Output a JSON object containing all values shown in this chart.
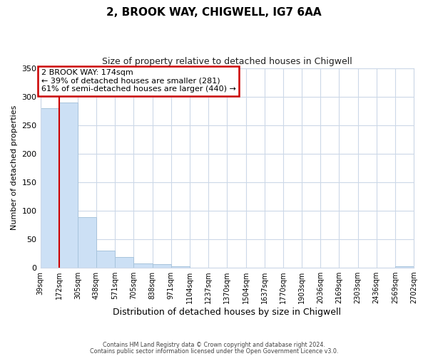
{
  "title": "2, BROOK WAY, CHIGWELL, IG7 6AA",
  "subtitle": "Size of property relative to detached houses in Chigwell",
  "xlabel": "Distribution of detached houses by size in Chigwell",
  "ylabel": "Number of detached properties",
  "bar_edges": [
    39,
    172,
    305,
    438,
    571,
    705,
    838,
    971,
    1104,
    1237,
    1370,
    1504,
    1637,
    1770,
    1903,
    2036,
    2169,
    2303,
    2436,
    2569,
    2702
  ],
  "bar_heights": [
    280,
    290,
    88,
    30,
    19,
    7,
    6,
    2,
    0,
    0,
    0,
    0,
    0,
    0,
    0,
    0,
    0,
    0,
    0,
    2
  ],
  "bar_color": "#cce0f5",
  "bar_edge_color": "#a8c4dc",
  "vline_x": 174,
  "vline_color": "#cc0000",
  "ylim": [
    0,
    350
  ],
  "annotation_text": "2 BROOK WAY: 174sqm\n← 39% of detached houses are smaller (281)\n61% of semi-detached houses are larger (440) →",
  "annotation_box_color": "#ffffff",
  "annotation_box_edge_color": "#cc0000",
  "footer_line1": "Contains HM Land Registry data © Crown copyright and database right 2024.",
  "footer_line2": "Contains public sector information licensed under the Open Government Licence v3.0.",
  "tick_labels": [
    "39sqm",
    "172sqm",
    "305sqm",
    "438sqm",
    "571sqm",
    "705sqm",
    "838sqm",
    "971sqm",
    "1104sqm",
    "1237sqm",
    "1370sqm",
    "1504sqm",
    "1637sqm",
    "1770sqm",
    "1903sqm",
    "2036sqm",
    "2169sqm",
    "2303sqm",
    "2436sqm",
    "2569sqm",
    "2702sqm"
  ],
  "background_color": "#ffffff",
  "grid_color": "#ccd8e8",
  "title_fontsize": 11,
  "subtitle_fontsize": 9,
  "ylabel_fontsize": 8,
  "xlabel_fontsize": 9,
  "tick_fontsize": 7,
  "annotation_fontsize": 8
}
